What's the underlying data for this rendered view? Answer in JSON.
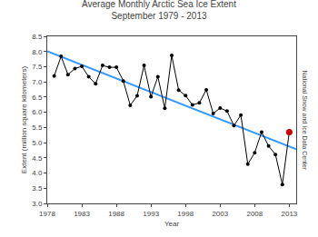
{
  "chart_data": {
    "type": "line",
    "title": "Average Monthly Arctic Sea Ice Extent\nSeptember 1979 - 2013",
    "xlabel": "Year",
    "ylabel": "Extent (million square kilometers)",
    "annotations": [
      "National Snow and Ice Data Center"
    ],
    "series": [
      {
        "type": "line",
        "color": "#000000",
        "marker": "circle",
        "line_style": "solid",
        "x": [
          1979,
          1980,
          1981,
          1982,
          1983,
          1984,
          1985,
          1986,
          1987,
          1988,
          1989,
          1990,
          1991,
          1992,
          1993,
          1994,
          1995,
          1996,
          1997,
          1998,
          1999,
          2000,
          2001,
          2002,
          2003,
          2004,
          2005,
          2006,
          2007,
          2008,
          2009,
          2010,
          2011,
          2012,
          2013
        ],
        "values": [
          7.19,
          7.84,
          7.24,
          7.44,
          7.51,
          7.17,
          6.94,
          7.54,
          7.48,
          7.48,
          7.03,
          6.23,
          6.54,
          7.54,
          6.51,
          7.17,
          6.13,
          7.87,
          6.73,
          6.55,
          6.24,
          6.31,
          6.74,
          5.96,
          6.14,
          6.04,
          5.56,
          5.91,
          4.29,
          4.67,
          5.35,
          4.89,
          4.61,
          3.62,
          5.35
        ]
      },
      {
        "type": "line",
        "color": "#3399ff",
        "line_style": "solid",
        "x": [
          1978,
          2014
        ],
        "values": [
          8.0055,
          4.7836
        ]
      },
      {
        "type": "scatter",
        "color": "#cc0000",
        "marker": "circle",
        "x": [
          2013
        ],
        "values": [
          5.35
        ]
      }
    ],
    "xlim": [
      1978,
      2014
    ],
    "ylim": [
      3.0,
      8.5
    ],
    "xticks": [
      1978,
      1983,
      1988,
      1993,
      1998,
      2003,
      2008,
      2013
    ],
    "yticks": [
      {
        "value": 3.0,
        "label": "3.0"
      },
      3.5,
      {
        "value": 4.0,
        "label": "4.0"
      },
      4.5,
      {
        "value": 5.0,
        "label": "5.0"
      },
      5.5,
      {
        "value": 6.0,
        "label": "6.0"
      },
      6.5,
      {
        "value": 7.0,
        "label": "7.0"
      },
      7.5,
      {
        "value": 8.0,
        "label": "8.0"
      },
      8.5
    ],
    "grid": false
  }
}
